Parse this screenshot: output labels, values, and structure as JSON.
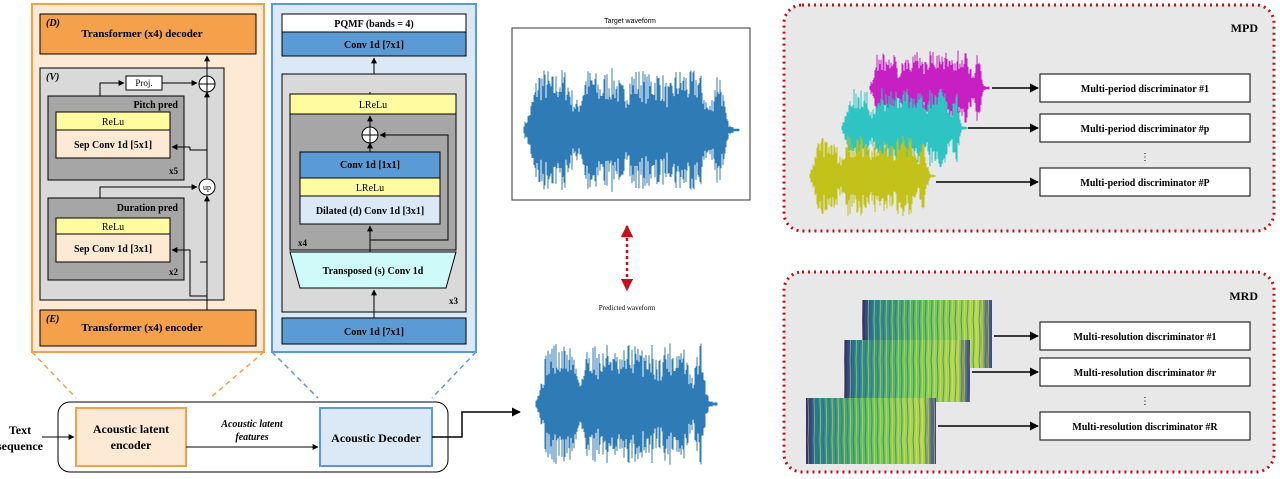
{
  "encoder_panel": {
    "decoder_tag": "(D)",
    "decoder_label": "Transformer (x4) decoder",
    "variance_tag": "(V)",
    "proj_label": "Proj.",
    "pitch": {
      "title": "Pitch pred",
      "act": "ReLu",
      "conv": "Sep Conv 1d [5x1]",
      "repeat": "x5"
    },
    "up_label": "up",
    "duration": {
      "title": "Duration pred",
      "act": "ReLu",
      "conv": "Sep Conv 1d [3x1]",
      "repeat": "x2"
    },
    "encoder_tag": "(E)",
    "encoder_label": "Transformer (x4) encoder"
  },
  "decoder_panel": {
    "pqmf_label": "PQMF (bands = 4)",
    "conv_top": "Conv 1d [7x1]",
    "lrelu_outer": "LReLu",
    "conv_1x1": "Conv 1d [1x1]",
    "lrelu_inner": "LReLu",
    "dilated_conv": "Dilated (d) Conv 1d [3x1]",
    "inner_repeat": "x4",
    "transposed_conv": "Transposed (s) Conv 1d",
    "outer_repeat": "x3",
    "conv_bottom": "Conv 1d [7x1]"
  },
  "pipeline": {
    "input_line1": "Text",
    "input_line2": "sequence",
    "encoder_line1": "Acoustic latent",
    "encoder_line2": "encoder",
    "features_line1": "Acoustic latent",
    "features_line2": "features",
    "decoder_label": "Acoustic Decoder"
  },
  "waveforms": {
    "target_title": "Target waveform",
    "predicted_title": "Predicted waveform"
  },
  "mpd": {
    "title": "MPD",
    "discriminators": [
      "Multi-period discriminator #1",
      "Multi-period discriminator #p",
      "Multi-period discriminator #P"
    ],
    "ellipsis": "⋮"
  },
  "mrd": {
    "title": "MRD",
    "discriminators": [
      "Multi-resolution discriminator #1",
      "Multi-resolution discriminator #r",
      "Multi-resolution discriminator #R"
    ],
    "ellipsis": "⋮"
  },
  "colors": {
    "orange_dark": "#f5a04a",
    "orange_light": "#fde9d4",
    "blue_dark": "#5b9bd5",
    "blue_light": "#dbe9f7",
    "yellow": "#fffb9e",
    "cyan": "#cffafa",
    "gray": "#bdbdbd",
    "waveform": "#2f7bb6",
    "mpd_magenta": "#c81fc4",
    "mpd_cyan": "#2ec4c4",
    "mpd_olive": "#c2c21a",
    "dotted_red": "#c0121a"
  }
}
